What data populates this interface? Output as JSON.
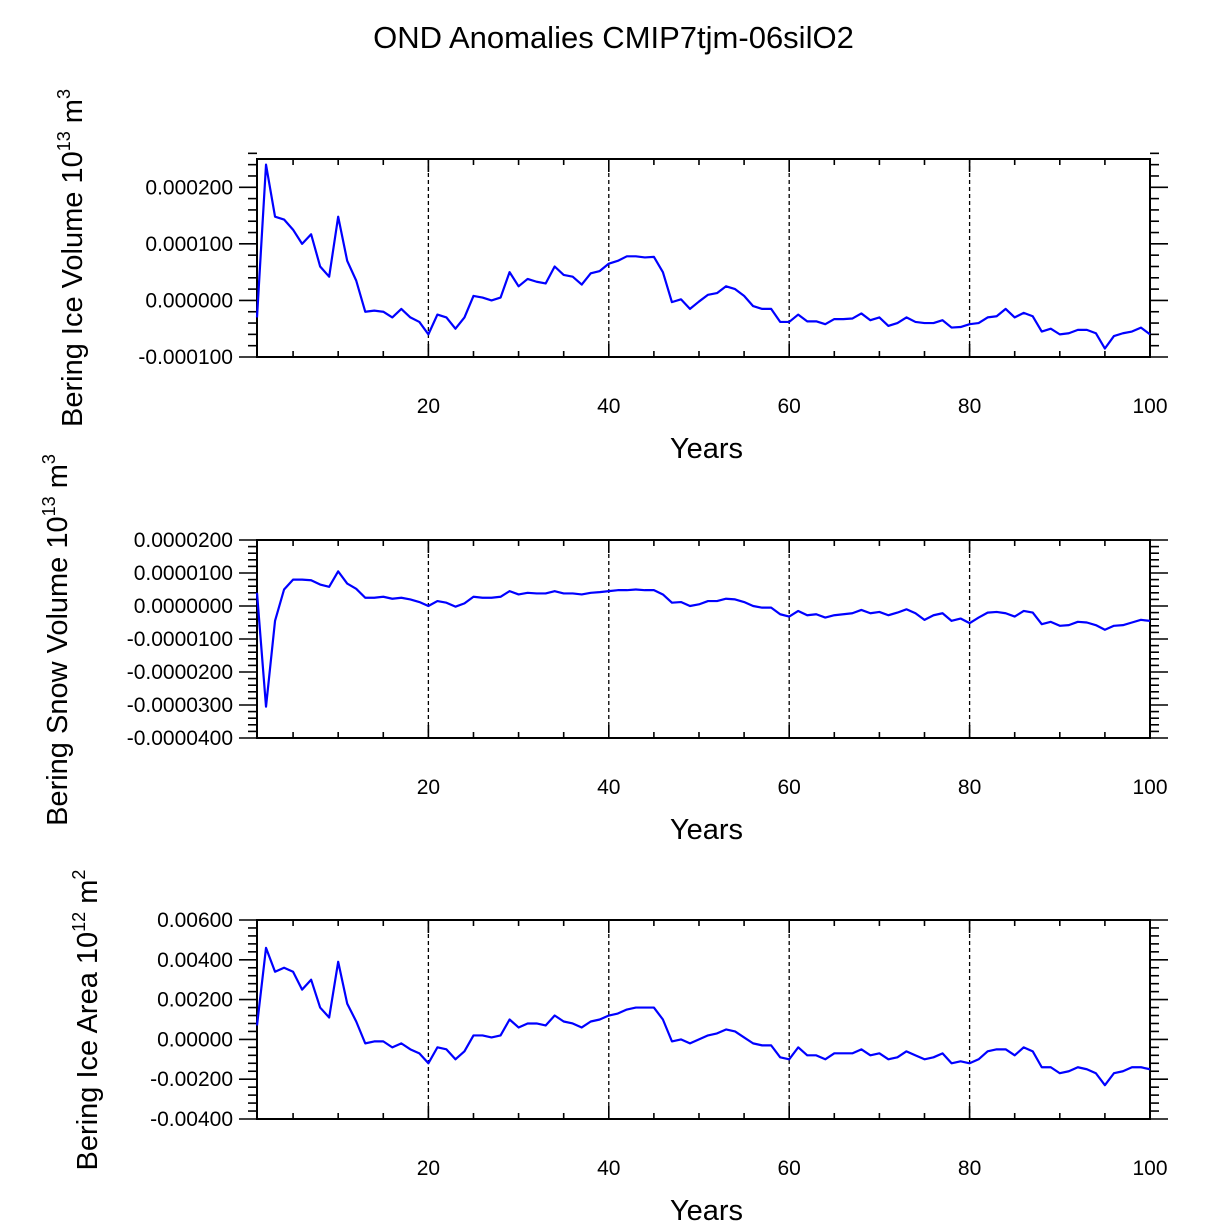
{
  "chart_data": [
    {
      "type": "line",
      "figure_title": "OND Anomalies CMIP7tjm-06silO2",
      "xlabel": "Years",
      "ylabel": "Bering Ice Volume",
      "ylabel_unit_base": "10",
      "ylabel_unit_exp": "13",
      "ylabel_unit": "m",
      "ylabel_unit_pow": "3",
      "xlim": [
        1,
        100
      ],
      "ylim": [
        -0.0001,
        0.00025
      ],
      "xticks": [
        20,
        40,
        60,
        80,
        100
      ],
      "xtick_labels": [
        "20",
        "40",
        "60",
        "80",
        "100"
      ],
      "yticks": [
        -0.0001,
        0.0,
        0.0001,
        0.0002
      ],
      "ytick_labels": [
        "-0.000100",
        "0.000000",
        "0.000100",
        "0.000200"
      ],
      "grid_x": [
        20,
        40,
        60,
        80
      ],
      "line_color": "#0000ff",
      "x_start": 1,
      "values": [
        -3e-05,
        0.00024,
        0.000148,
        0.000143,
        0.000125,
        0.0001,
        0.000117,
        6e-05,
        4.2e-05,
        0.000148,
        7e-05,
        3.5e-05,
        -2e-05,
        -1.8e-05,
        -2e-05,
        -3e-05,
        -1.5e-05,
        -3e-05,
        -3.8e-05,
        -6e-05,
        -2.5e-05,
        -3e-05,
        -5e-05,
        -3e-05,
        8e-06,
        5e-06,
        0.0,
        5e-06,
        5e-05,
        2.5e-05,
        3.8e-05,
        3.3e-05,
        3e-05,
        6e-05,
        4.5e-05,
        4.2e-05,
        2.8e-05,
        4.8e-05,
        5.2e-05,
        6.5e-05,
        7e-05,
        7.8e-05,
        7.8e-05,
        7.6e-05,
        7.7e-05,
        5e-05,
        -3e-06,
        2e-06,
        -1.5e-05,
        -2e-06,
        1e-05,
        1.3e-05,
        2.5e-05,
        2e-05,
        8e-06,
        -1e-05,
        -1.5e-05,
        -1.5e-05,
        -3.8e-05,
        -3.8e-05,
        -2.5e-05,
        -3.7e-05,
        -3.7e-05,
        -4.2e-05,
        -3.3e-05,
        -3.3e-05,
        -3.2e-05,
        -2.3e-05,
        -3.5e-05,
        -3e-05,
        -4.5e-05,
        -4e-05,
        -3e-05,
        -3.8e-05,
        -4e-05,
        -4e-05,
        -3.5e-05,
        -4.8e-05,
        -4.7e-05,
        -4.2e-05,
        -4e-05,
        -3e-05,
        -2.8e-05,
        -1.5e-05,
        -3e-05,
        -2.2e-05,
        -2.8e-05,
        -5.5e-05,
        -5e-05,
        -6e-05,
        -5.8e-05,
        -5.2e-05,
        -5.2e-05,
        -5.8e-05,
        -8.5e-05,
        -6.3e-05,
        -5.8e-05,
        -5.5e-05,
        -4.8e-05,
        -6e-05
      ]
    },
    {
      "type": "line",
      "xlabel": "Years",
      "ylabel": "Bering Snow Volume",
      "ylabel_unit_base": "10",
      "ylabel_unit_exp": "13",
      "ylabel_unit": "m",
      "ylabel_unit_pow": "3",
      "xlim": [
        1,
        100
      ],
      "ylim": [
        -4e-05,
        2e-05
      ],
      "xticks": [
        20,
        40,
        60,
        80,
        100
      ],
      "xtick_labels": [
        "20",
        "40",
        "60",
        "80",
        "100"
      ],
      "yticks": [
        -4e-05,
        -3e-05,
        -2e-05,
        -1e-05,
        0.0,
        1e-05,
        2e-05
      ],
      "ytick_labels": [
        "-0.0000400",
        "-0.0000300",
        "-0.0000200",
        "-0.0000100",
        "0.0000000",
        "0.0000100",
        "0.0000200"
      ],
      "grid_x": [
        20,
        40,
        60,
        80
      ],
      "line_color": "#0000ff",
      "x_start": 1,
      "values": [
        4e-06,
        -3.05e-05,
        -4.5e-06,
        5e-06,
        8e-06,
        8e-06,
        7.8e-06,
        6.5e-06,
        5.8e-06,
        1.05e-05,
        6.8e-06,
        5.2e-06,
        2.5e-06,
        2.5e-06,
        2.8e-06,
        2.2e-06,
        2.5e-06,
        2e-06,
        1.2e-06,
        0.0,
        1.5e-06,
        1e-06,
        -2e-07,
        8e-07,
        2.8e-06,
        2.5e-06,
        2.5e-06,
        2.8e-06,
        4.5e-06,
        3.5e-06,
        4e-06,
        3.8e-06,
        3.8e-06,
        4.5e-06,
        3.8e-06,
        3.8e-06,
        3.5e-06,
        4e-06,
        4.2e-06,
        4.5e-06,
        4.8e-06,
        4.8e-06,
        5e-06,
        4.8e-06,
        4.8e-06,
        3.5e-06,
        1e-06,
        1.2e-06,
        0.0,
        5e-07,
        1.5e-06,
        1.5e-06,
        2.2e-06,
        2e-06,
        1.2e-06,
        0.0,
        -5e-07,
        -5e-07,
        -2.5e-06,
        -3.2e-06,
        -1.5e-06,
        -2.8e-06,
        -2.5e-06,
        -3.5e-06,
        -2.8e-06,
        -2.5e-06,
        -2.2e-06,
        -1.2e-06,
        -2.2e-06,
        -1.8e-06,
        -2.8e-06,
        -2e-06,
        -1e-06,
        -2.2e-06,
        -4.2e-06,
        -2.8e-06,
        -2.2e-06,
        -4.5e-06,
        -3.8e-06,
        -5.2e-06,
        -3.5e-06,
        -2e-06,
        -1.8e-06,
        -2.2e-06,
        -3.2e-06,
        -1.5e-06,
        -2e-06,
        -5.5e-06,
        -4.8e-06,
        -6e-06,
        -5.8e-06,
        -4.8e-06,
        -5e-06,
        -5.8e-06,
        -7.2e-06,
        -6e-06,
        -5.8e-06,
        -5e-06,
        -4.2e-06,
        -4.5e-06
      ]
    },
    {
      "type": "line",
      "xlabel": "Years",
      "ylabel": "Bering Ice Area",
      "ylabel_unit_base": "10",
      "ylabel_unit_exp": "12",
      "ylabel_unit": "m",
      "ylabel_unit_pow": "2",
      "xlim": [
        1,
        100
      ],
      "ylim": [
        -0.004,
        0.006
      ],
      "xticks": [
        20,
        40,
        60,
        80,
        100
      ],
      "xtick_labels": [
        "20",
        "40",
        "60",
        "80",
        "100"
      ],
      "yticks": [
        -0.004,
        -0.002,
        0.0,
        0.002,
        0.004,
        0.006
      ],
      "ytick_labels": [
        "-0.00400",
        "-0.00200",
        "0.00000",
        "0.00200",
        "0.00400",
        "0.00600"
      ],
      "grid_x": [
        20,
        40,
        60,
        80
      ],
      "line_color": "#0000ff",
      "x_start": 1,
      "values": [
        0.0007,
        0.0046,
        0.0034,
        0.0036,
        0.0034,
        0.0025,
        0.003,
        0.0016,
        0.0011,
        0.0039,
        0.0018,
        0.0009,
        -0.0002,
        -0.0001,
        -0.0001,
        -0.0004,
        -0.0002,
        -0.0005,
        -0.0007,
        -0.0012,
        -0.0004,
        -0.0005,
        -0.001,
        -0.0006,
        0.0002,
        0.0002,
        0.0001,
        0.0002,
        0.001,
        0.0006,
        0.0008,
        0.0008,
        0.0007,
        0.0012,
        0.0009,
        0.0008,
        0.0006,
        0.0009,
        0.001,
        0.0012,
        0.0013,
        0.0015,
        0.0016,
        0.0016,
        0.0016,
        0.001,
        -0.0001,
        0.0,
        -0.0002,
        0.0,
        0.0002,
        0.0003,
        0.0005,
        0.0004,
        0.0001,
        -0.0002,
        -0.0003,
        -0.0003,
        -0.0009,
        -0.001,
        -0.0004,
        -0.0008,
        -0.0008,
        -0.001,
        -0.0007,
        -0.0007,
        -0.0007,
        -0.0005,
        -0.0008,
        -0.0007,
        -0.001,
        -0.0009,
        -0.0006,
        -0.0008,
        -0.001,
        -0.0009,
        -0.0007,
        -0.0012,
        -0.0011,
        -0.0012,
        -0.001,
        -0.0006,
        -0.0005,
        -0.0005,
        -0.0008,
        -0.0004,
        -0.0006,
        -0.0014,
        -0.0014,
        -0.0017,
        -0.0016,
        -0.0014,
        -0.0015,
        -0.0017,
        -0.0023,
        -0.0017,
        -0.0016,
        -0.0014,
        -0.0014,
        -0.0015
      ]
    }
  ]
}
